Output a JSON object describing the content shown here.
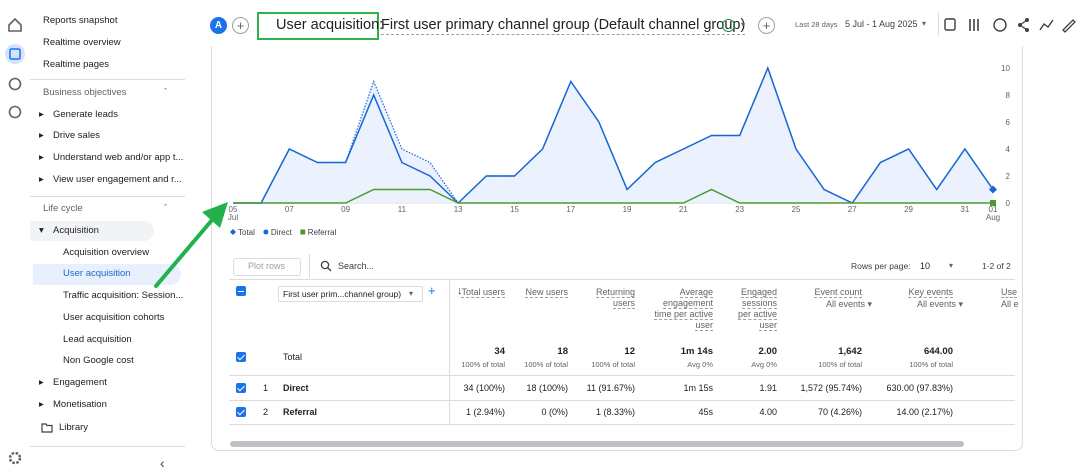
{
  "nav": {
    "top": [
      "Reports snapshot",
      "Realtime overview",
      "Realtime pages"
    ],
    "sections": [
      {
        "title": "Business objectives",
        "items": [
          "Generate leads",
          "Drive sales",
          "Understand web and/or app t...",
          "View user engagement and r..."
        ]
      },
      {
        "title": "Life cycle",
        "items": [
          {
            "label": "Acquisition",
            "children": [
              "Acquisition overview",
              "User acquisition",
              "Traffic acquisition: Session...",
              "User acquisition cohorts",
              "Lead acquisition",
              "Non Google cost"
            ]
          },
          {
            "label": "Engagement"
          },
          {
            "label": "Monetisation"
          }
        ]
      }
    ],
    "library": "Library"
  },
  "header": {
    "avatar": "A",
    "title_highlight": "User acquisition:",
    "title_rest": "First user primary channel group (Default channel group)",
    "date_range_label": "Last 28 days",
    "date_range": "5 Jul - 1 Aug 2025"
  },
  "chart_data": {
    "type": "line",
    "categories": [
      "05",
      null,
      "07",
      null,
      "09",
      null,
      "11",
      null,
      "13",
      null,
      "15",
      null,
      "17",
      null,
      "19",
      null,
      "21",
      null,
      "23",
      null,
      "25",
      null,
      "27",
      null,
      "29",
      null,
      "31",
      "01"
    ],
    "category_sublabels": [
      {
        "index": 0,
        "label": "Jul"
      },
      {
        "index": 27,
        "label": "Aug"
      }
    ],
    "series": [
      {
        "name": "Total",
        "color": "#1967d2",
        "values": [
          0,
          0,
          4,
          3,
          3,
          9,
          4,
          3,
          0,
          2,
          2,
          4,
          9,
          6,
          1,
          3,
          4,
          5,
          5,
          10,
          4,
          1,
          0,
          3,
          4,
          1,
          4,
          1
        ]
      },
      {
        "name": "Direct",
        "color": "#1967d2",
        "values": [
          0,
          0,
          4,
          3,
          3,
          8,
          3,
          2,
          0,
          2,
          2,
          4,
          9,
          6,
          1,
          3,
          4,
          5,
          5,
          10,
          4,
          1,
          0,
          3,
          4,
          1,
          4,
          1
        ]
      },
      {
        "name": "Referral",
        "color": "#4e9a2e",
        "values": [
          0,
          0,
          0,
          0,
          0,
          1,
          1,
          1,
          0,
          0,
          0,
          0,
          0,
          0,
          0,
          0,
          0,
          1,
          0,
          0,
          0,
          0,
          0,
          0,
          0,
          0,
          0,
          0
        ]
      }
    ],
    "ylim": [
      0,
      10
    ],
    "yticks": [
      0,
      2,
      4,
      6,
      8,
      10
    ],
    "yaxis_position": "right",
    "legend_position": "bottom-left"
  },
  "table": {
    "plot_rows": "Plot rows",
    "search": "Search...",
    "rows_per_page_label": "Rows per page:",
    "rows_per_page": "10",
    "pagination": "1-2 of 2",
    "dimension": "First user prim...channel group)",
    "total_label": "Total",
    "columns": [
      {
        "header": "Total users",
        "total": "34",
        "total_sub": "100% of total"
      },
      {
        "header": "New users",
        "total": "18",
        "total_sub": "100% of total"
      },
      {
        "header": "Returning users",
        "total": "12",
        "total_sub": "100% of total"
      },
      {
        "header": "Average engagement time per active user",
        "total": "1m 14s",
        "total_sub": "Avg 0%"
      },
      {
        "header": "Engaged sessions per active user",
        "total": "2.00",
        "total_sub": "Avg 0%"
      },
      {
        "header": "Event count",
        "filter": "All events",
        "total": "1,642",
        "total_sub": "100% of total"
      },
      {
        "header": "Key events",
        "filter": "All events",
        "total": "644.00",
        "total_sub": "100% of total"
      },
      {
        "header": "Use",
        "filter": "All e"
      }
    ],
    "rows": [
      {
        "index": "1",
        "name": "Direct",
        "cells": [
          "34 (100%)",
          "18 (100%)",
          "11 (91.67%)",
          "1m 15s",
          "1.91",
          "1,572 (95.74%)",
          "630.00 (97.83%)"
        ]
      },
      {
        "index": "2",
        "name": "Referral",
        "cells": [
          "1 (2.94%)",
          "0 (0%)",
          "1 (8.33%)",
          "45s",
          "4.00",
          "70 (4.26%)",
          "14.00 (2.17%)"
        ]
      }
    ]
  }
}
